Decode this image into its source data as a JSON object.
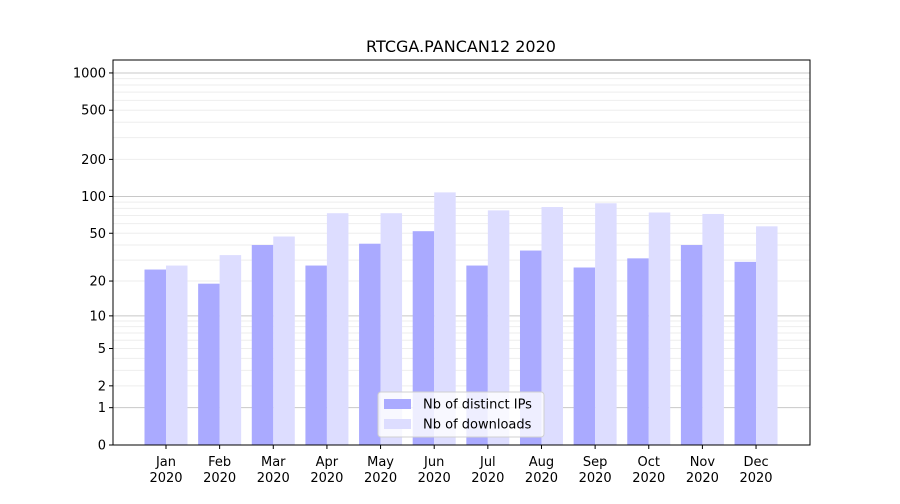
{
  "chart_data": {
    "type": "bar",
    "title": "RTCGA.PANCAN12 2020",
    "xlabel": "",
    "ylabel": "",
    "yscale": "symlog",
    "ylim": [
      0,
      1300
    ],
    "yticks": [
      0,
      1,
      2,
      5,
      10,
      20,
      50,
      100,
      200,
      500,
      1000
    ],
    "grid": true,
    "legend_position": "bottom-center",
    "categories": [
      "Jan\n2020",
      "Feb\n2020",
      "Mar\n2020",
      "Apr\n2020",
      "May\n2020",
      "Jun\n2020",
      "Jul\n2020",
      "Aug\n2020",
      "Sep\n2020",
      "Oct\n2020",
      "Nov\n2020",
      "Dec\n2020"
    ],
    "series": [
      {
        "name": "Nb of distinct IPs",
        "color": "#aaaaff",
        "values": [
          25,
          19,
          40,
          27,
          41,
          52,
          27,
          36,
          26,
          31,
          40,
          29
        ]
      },
      {
        "name": "Nb of downloads",
        "color": "#ddddff",
        "values": [
          27,
          33,
          47,
          73,
          73,
          108,
          77,
          82,
          88,
          74,
          72,
          57
        ]
      }
    ]
  }
}
